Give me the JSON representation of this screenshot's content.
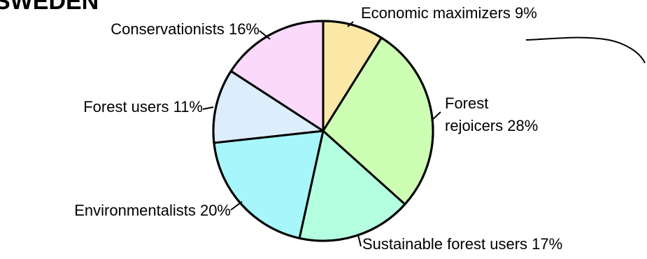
{
  "header": {
    "text": "SWEDEN"
  },
  "chart_data": {
    "type": "pie",
    "start_angle_deg": 0,
    "direction": "clockwise",
    "slices": [
      {
        "label": "Economic maximizers 9%",
        "value": 9,
        "color": "#fbe8a6"
      },
      {
        "label": "Forest rejoicers 28%",
        "value": 28,
        "color": "#ccffb3"
      },
      {
        "label": "Sustainable forest users 17%",
        "value": 17,
        "color": "#b3ffe0"
      },
      {
        "label": "Environmentalists 20%",
        "value": 20,
        "color": "#a6f6fb"
      },
      {
        "label": "Forest users 11%",
        "value": 11,
        "color": "#dcedfb"
      },
      {
        "label": "Conservationists 16%",
        "value": 16,
        "color": "#fbd9fb"
      }
    ],
    "label_lines": [
      [
        "Economic maximizers 9%"
      ],
      [
        "Forest",
        "rejoicers 28%"
      ],
      [
        "Sustainable forest users 17%"
      ],
      [
        "Environmentalists 20%"
      ],
      [
        "Forest users 11%"
      ],
      [
        "Conservationists 16%"
      ]
    ]
  }
}
